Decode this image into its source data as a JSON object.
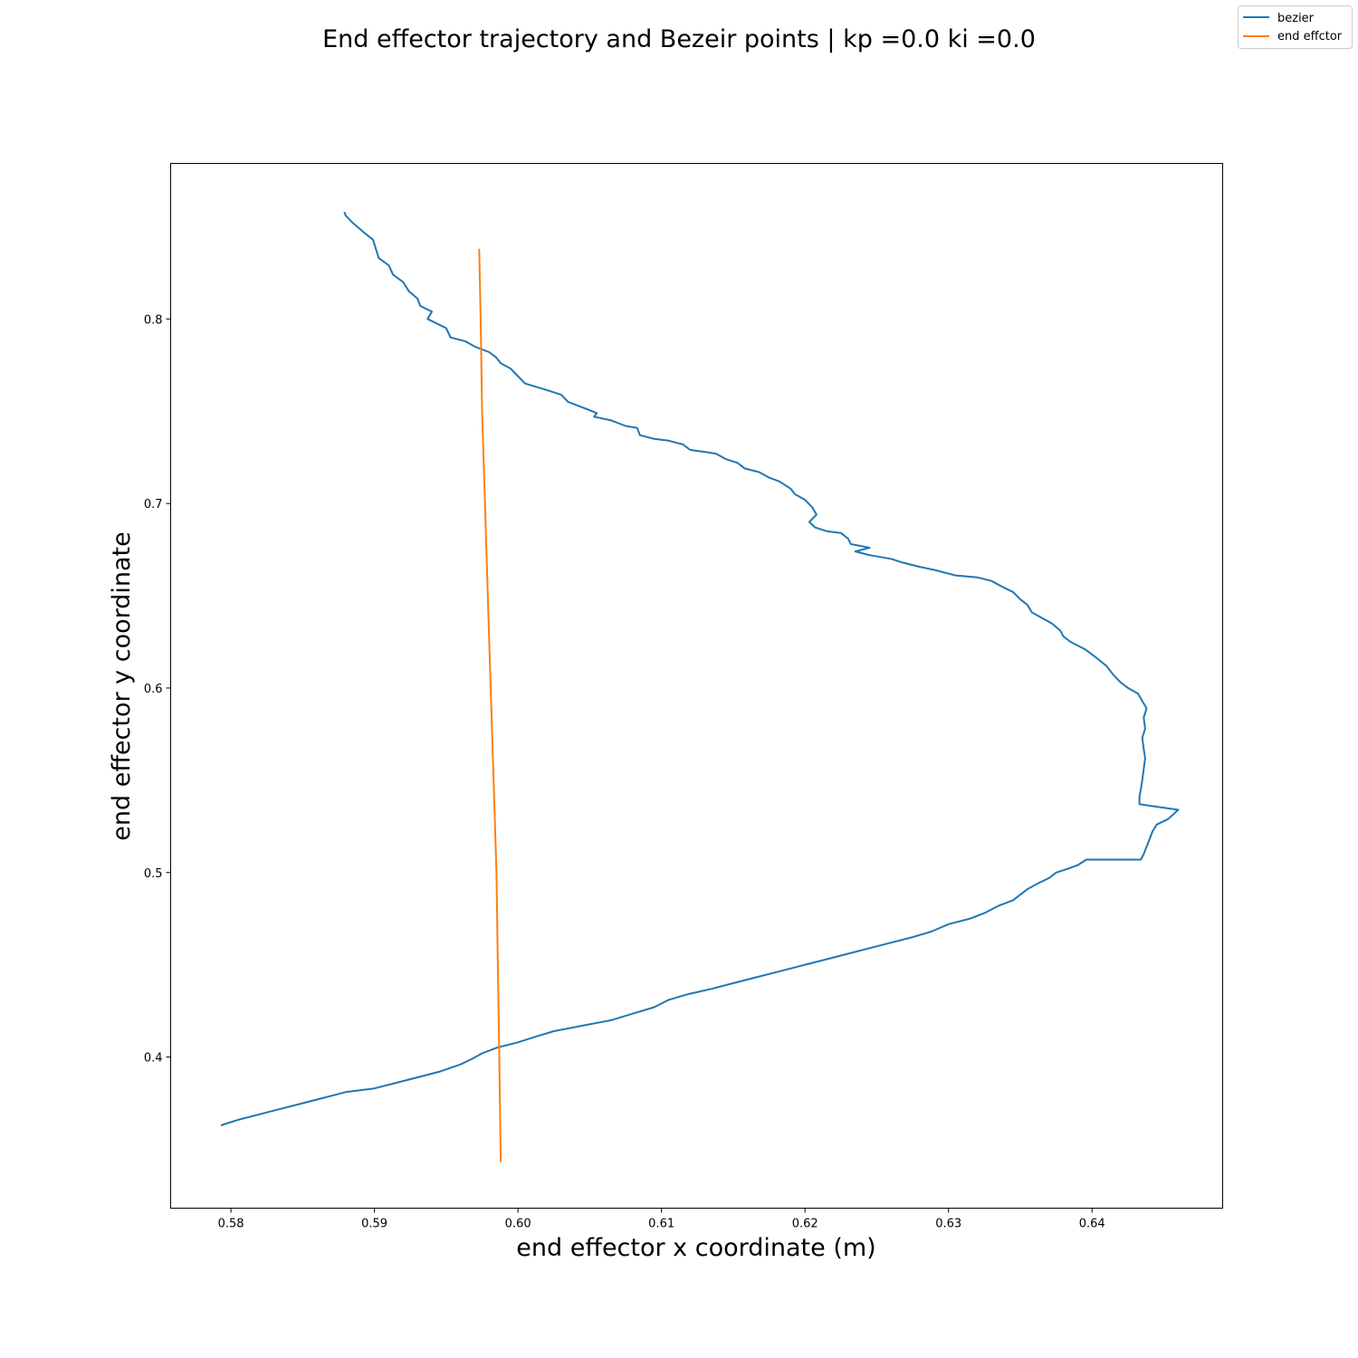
{
  "chart_data": {
    "type": "line",
    "title": "End effector trajectory and Bezeir points | kp =0.0 ki =0.0",
    "xlabel": "end effector x coordinate (m)",
    "ylabel": "end effector y coordinate",
    "xlim": [
      0.5758,
      0.6491
    ],
    "ylim": [
      0.3181,
      0.8843
    ],
    "xticks": [
      0.58,
      0.59,
      0.6,
      0.61,
      0.62,
      0.63,
      0.64
    ],
    "xtick_labels": [
      "0.58",
      "0.59",
      "0.60",
      "0.61",
      "0.62",
      "0.63",
      "0.64"
    ],
    "yticks": [
      0.4,
      0.5,
      0.6,
      0.7,
      0.8
    ],
    "ytick_labels": [
      "0.4",
      "0.5",
      "0.6",
      "0.7",
      "0.8"
    ],
    "grid": false,
    "legend_position": "top-right",
    "series": [
      {
        "name": "bezier",
        "color": "#1f77b4",
        "points": [
          [
            0.5879,
            0.858
          ],
          [
            0.588,
            0.856
          ],
          [
            0.5885,
            0.852
          ],
          [
            0.5894,
            0.846
          ],
          [
            0.5899,
            0.843
          ],
          [
            0.5901,
            0.838
          ],
          [
            0.5903,
            0.833
          ],
          [
            0.591,
            0.829
          ],
          [
            0.5913,
            0.824
          ],
          [
            0.592,
            0.82
          ],
          [
            0.5924,
            0.815
          ],
          [
            0.593,
            0.811
          ],
          [
            0.5932,
            0.807
          ],
          [
            0.594,
            0.804
          ],
          [
            0.5937,
            0.8
          ],
          [
            0.595,
            0.795
          ],
          [
            0.5953,
            0.79
          ],
          [
            0.5963,
            0.788
          ],
          [
            0.597,
            0.785
          ],
          [
            0.598,
            0.782
          ],
          [
            0.5985,
            0.779
          ],
          [
            0.5988,
            0.776
          ],
          [
            0.5995,
            0.773
          ],
          [
            0.6,
            0.769
          ],
          [
            0.6005,
            0.765
          ],
          [
            0.6018,
            0.762
          ],
          [
            0.603,
            0.759
          ],
          [
            0.6035,
            0.755
          ],
          [
            0.6045,
            0.752
          ],
          [
            0.6055,
            0.749
          ],
          [
            0.6053,
            0.747
          ],
          [
            0.6065,
            0.745
          ],
          [
            0.6075,
            0.742
          ],
          [
            0.6083,
            0.741
          ],
          [
            0.6085,
            0.737
          ],
          [
            0.6095,
            0.735
          ],
          [
            0.6105,
            0.734
          ],
          [
            0.6115,
            0.732
          ],
          [
            0.612,
            0.729
          ],
          [
            0.613,
            0.728
          ],
          [
            0.6138,
            0.727
          ],
          [
            0.6145,
            0.724
          ],
          [
            0.6153,
            0.722
          ],
          [
            0.6158,
            0.719
          ],
          [
            0.6168,
            0.717
          ],
          [
            0.6175,
            0.714
          ],
          [
            0.6182,
            0.712
          ],
          [
            0.619,
            0.708
          ],
          [
            0.6193,
            0.705
          ],
          [
            0.62,
            0.702
          ],
          [
            0.6205,
            0.698
          ],
          [
            0.6208,
            0.694
          ],
          [
            0.6203,
            0.69
          ],
          [
            0.6207,
            0.687
          ],
          [
            0.6215,
            0.685
          ],
          [
            0.6225,
            0.684
          ],
          [
            0.623,
            0.681
          ],
          [
            0.6232,
            0.678
          ],
          [
            0.6245,
            0.676
          ],
          [
            0.6235,
            0.674
          ],
          [
            0.6245,
            0.672
          ],
          [
            0.626,
            0.67
          ],
          [
            0.6268,
            0.668
          ],
          [
            0.6278,
            0.666
          ],
          [
            0.629,
            0.664
          ],
          [
            0.6305,
            0.661
          ],
          [
            0.632,
            0.66
          ],
          [
            0.633,
            0.658
          ],
          [
            0.6337,
            0.655
          ],
          [
            0.6345,
            0.652
          ],
          [
            0.635,
            0.648
          ],
          [
            0.6355,
            0.645
          ],
          [
            0.6358,
            0.641
          ],
          [
            0.6365,
            0.638
          ],
          [
            0.6372,
            0.635
          ],
          [
            0.6378,
            0.631
          ],
          [
            0.638,
            0.628
          ],
          [
            0.6385,
            0.625
          ],
          [
            0.6395,
            0.621
          ],
          [
            0.6402,
            0.617
          ],
          [
            0.641,
            0.612
          ],
          [
            0.6415,
            0.607
          ],
          [
            0.642,
            0.603
          ],
          [
            0.6425,
            0.6
          ],
          [
            0.6432,
            0.597
          ],
          [
            0.6435,
            0.593
          ],
          [
            0.6438,
            0.589
          ],
          [
            0.6436,
            0.584
          ],
          [
            0.6437,
            0.578
          ],
          [
            0.6435,
            0.573
          ],
          [
            0.6436,
            0.567
          ],
          [
            0.6437,
            0.562
          ],
          [
            0.6436,
            0.556
          ],
          [
            0.6435,
            0.55
          ],
          [
            0.6434,
            0.545
          ],
          [
            0.6433,
            0.541
          ],
          [
            0.6433,
            0.537
          ],
          [
            0.646,
            0.534
          ],
          [
            0.6453,
            0.529
          ],
          [
            0.6445,
            0.526
          ],
          [
            0.6442,
            0.522
          ],
          [
            0.644,
            0.518
          ],
          [
            0.6438,
            0.514
          ],
          [
            0.6436,
            0.51
          ],
          [
            0.6434,
            0.507
          ],
          [
            0.6396,
            0.507
          ],
          [
            0.639,
            0.504
          ],
          [
            0.6383,
            0.502
          ],
          [
            0.6375,
            0.5
          ],
          [
            0.637,
            0.497
          ],
          [
            0.6362,
            0.494
          ],
          [
            0.6355,
            0.491
          ],
          [
            0.635,
            0.488
          ],
          [
            0.6345,
            0.485
          ],
          [
            0.6335,
            0.482
          ],
          [
            0.6325,
            0.478
          ],
          [
            0.6315,
            0.475
          ],
          [
            0.63,
            0.472
          ],
          [
            0.6288,
            0.468
          ],
          [
            0.6275,
            0.465
          ],
          [
            0.626,
            0.462
          ],
          [
            0.6245,
            0.459
          ],
          [
            0.6225,
            0.455
          ],
          [
            0.621,
            0.452
          ],
          [
            0.6195,
            0.449
          ],
          [
            0.618,
            0.446
          ],
          [
            0.6165,
            0.443
          ],
          [
            0.615,
            0.44
          ],
          [
            0.6135,
            0.437
          ],
          [
            0.6118,
            0.434
          ],
          [
            0.6105,
            0.431
          ],
          [
            0.6095,
            0.427
          ],
          [
            0.6082,
            0.424
          ],
          [
            0.6065,
            0.42
          ],
          [
            0.6045,
            0.417
          ],
          [
            0.6025,
            0.414
          ],
          [
            0.6012,
            0.411
          ],
          [
            0.6,
            0.408
          ],
          [
            0.5985,
            0.405
          ],
          [
            0.5975,
            0.402
          ],
          [
            0.5968,
            0.399
          ],
          [
            0.596,
            0.396
          ],
          [
            0.5945,
            0.392
          ],
          [
            0.593,
            0.389
          ],
          [
            0.5915,
            0.386
          ],
          [
            0.59,
            0.383
          ],
          [
            0.588,
            0.381
          ],
          [
            0.586,
            0.377
          ],
          [
            0.5845,
            0.374
          ],
          [
            0.583,
            0.371
          ],
          [
            0.582,
            0.369
          ],
          [
            0.5805,
            0.366
          ],
          [
            0.5793,
            0.363
          ]
        ]
      },
      {
        "name": "end effctor",
        "color": "#ff7f0e",
        "points": [
          [
            0.5973,
            0.838
          ],
          [
            0.5974,
            0.8
          ],
          [
            0.5975,
            0.75
          ],
          [
            0.5977,
            0.7
          ],
          [
            0.5979,
            0.65
          ],
          [
            0.5981,
            0.6
          ],
          [
            0.5983,
            0.55
          ],
          [
            0.5985,
            0.5
          ],
          [
            0.5986,
            0.45
          ],
          [
            0.5987,
            0.4
          ],
          [
            0.5988,
            0.343
          ]
        ]
      }
    ]
  }
}
